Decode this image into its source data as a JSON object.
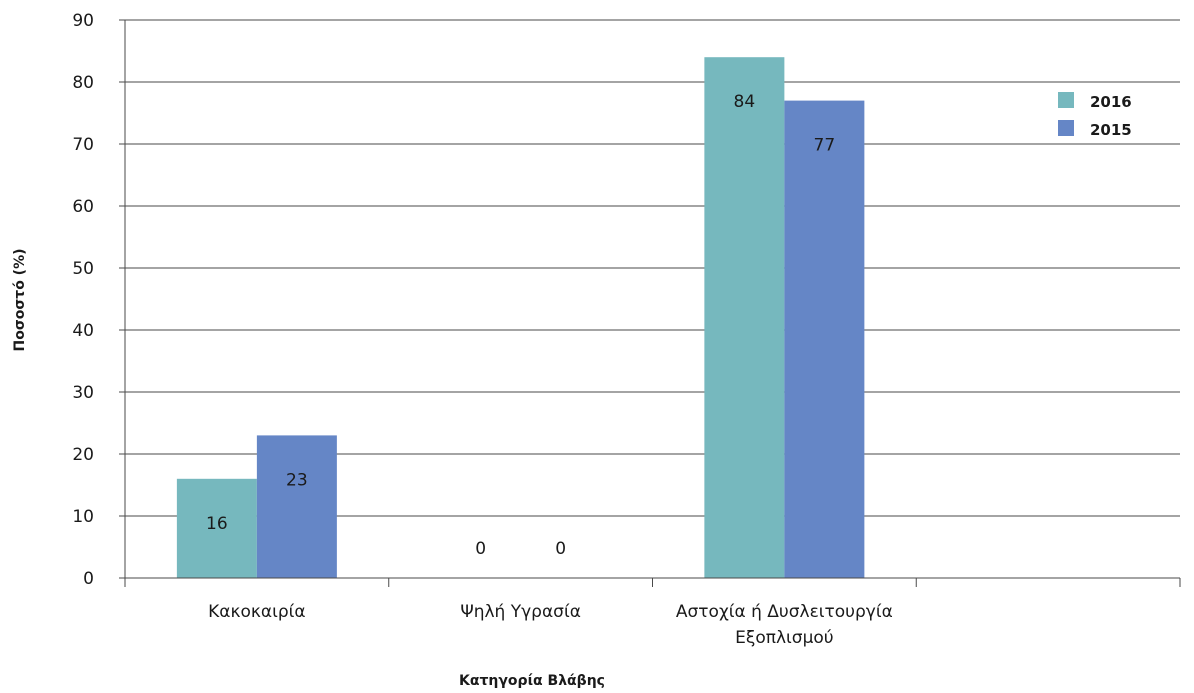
{
  "chart_data": {
    "type": "bar",
    "title": "",
    "xlabel": "Κατηγορία Βλάβης",
    "ylabel": "Ποσοστό (%)",
    "ylim": [
      0,
      90
    ],
    "yticks": [
      0,
      10,
      20,
      30,
      40,
      50,
      60,
      70,
      80,
      90
    ],
    "categories": [
      [
        "Κακοκαιρία"
      ],
      [
        "Ψηλή Υγρασία"
      ],
      [
        "Αστοχία ή Δυσλειτουργία",
        "Εξοπλισμού"
      ],
      [
        ""
      ]
    ],
    "series": [
      {
        "name": "2016",
        "color": "#76b8be",
        "values": [
          16,
          0,
          84,
          null
        ]
      },
      {
        "name": "2015",
        "color": "#6586c6",
        "values": [
          23,
          0,
          77,
          null
        ]
      }
    ],
    "grid": true,
    "legend": "top-right"
  }
}
